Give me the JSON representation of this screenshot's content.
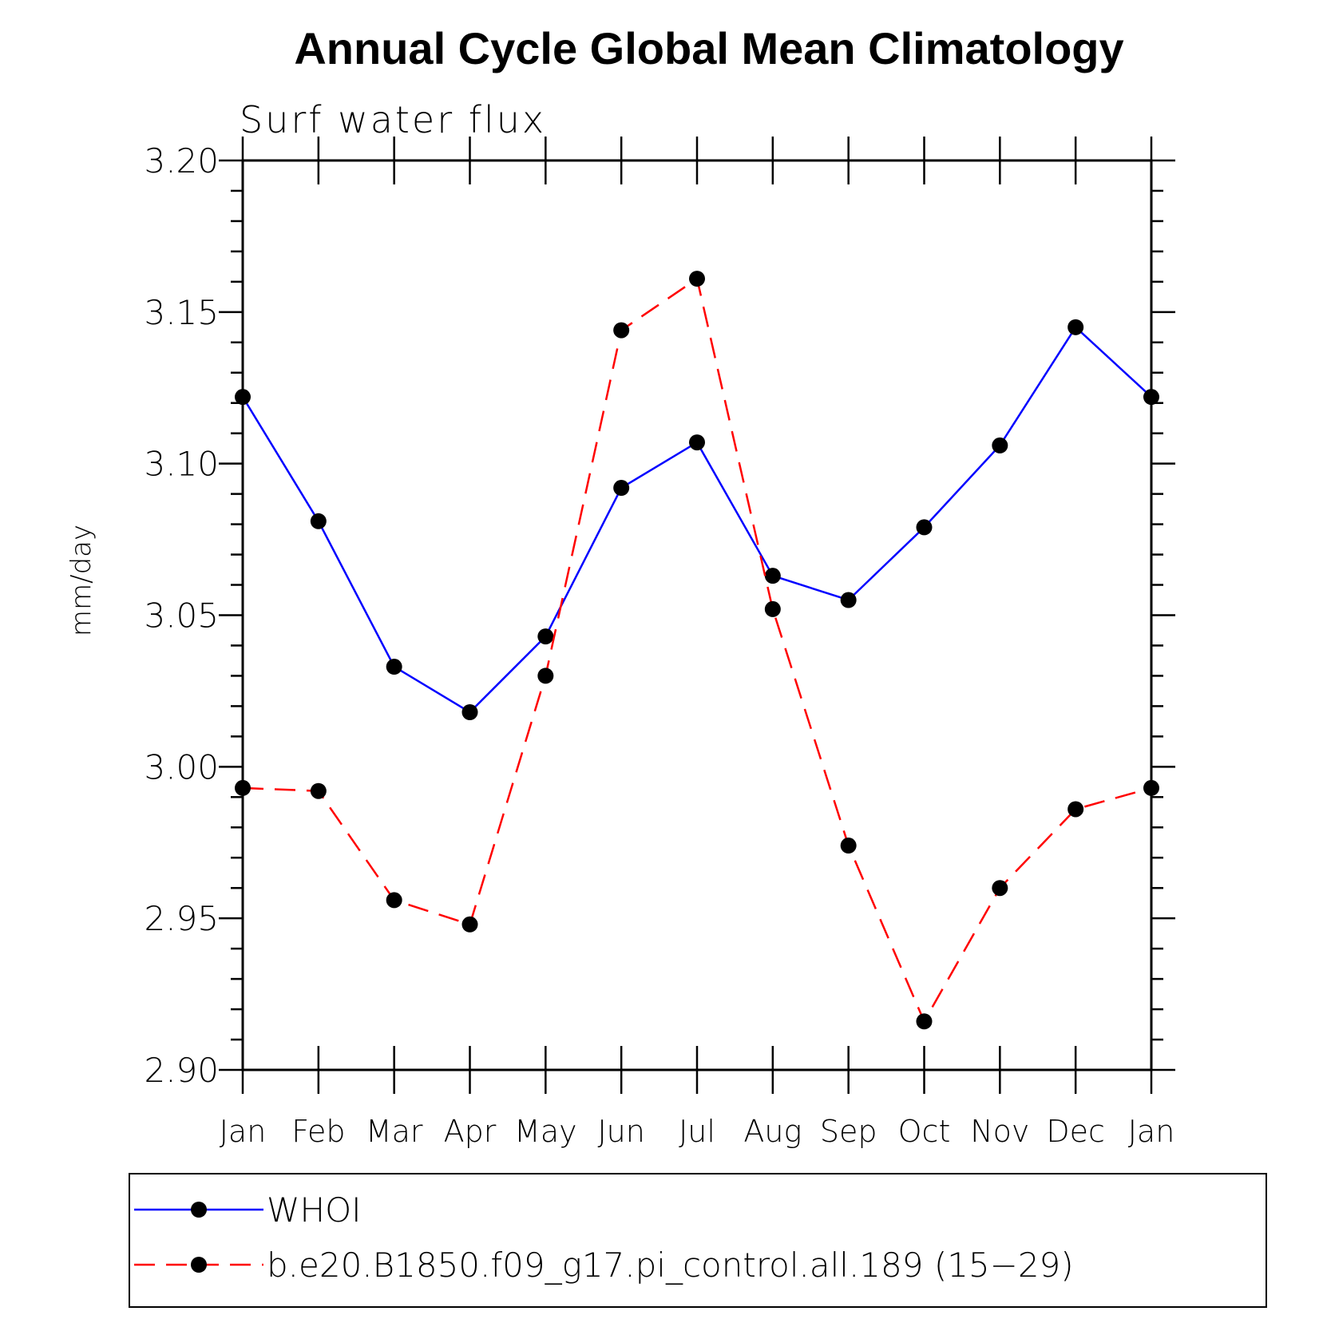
{
  "chart_data": {
    "type": "line",
    "title": "Annual Cycle Global Mean Climatology",
    "subtitle": "Surf water flux",
    "xlabel": "",
    "ylabel": "mm/day",
    "ylim": [
      2.9,
      3.2
    ],
    "yticks": [
      "3.20",
      "3.15",
      "3.10",
      "3.05",
      "3.00",
      "2.95",
      "2.90"
    ],
    "yminor_step": 0.01,
    "categories": [
      "Jan",
      "Feb",
      "Mar",
      "Apr",
      "May",
      "Jun",
      "Jul",
      "Aug",
      "Sep",
      "Oct",
      "Nov",
      "Dec",
      "Jan"
    ],
    "grid": false,
    "legend_position": "bottom",
    "series": [
      {
        "name": "WHOI",
        "color": "#0000ff",
        "dash": "solid",
        "marker": "filled-circle",
        "values": [
          3.122,
          3.081,
          3.033,
          3.018,
          3.043,
          3.092,
          3.107,
          3.063,
          3.055,
          3.079,
          3.106,
          3.145,
          3.122
        ]
      },
      {
        "name": "b.e20.B1850.f09_g17.pi_control.all.189 (15−29)",
        "color": "#ff0000",
        "dash": "dashed",
        "marker": "filled-circle",
        "values": [
          2.993,
          2.992,
          2.956,
          2.948,
          3.03,
          3.144,
          3.161,
          3.052,
          2.974,
          2.916,
          2.96,
          2.986,
          2.993
        ]
      }
    ]
  }
}
